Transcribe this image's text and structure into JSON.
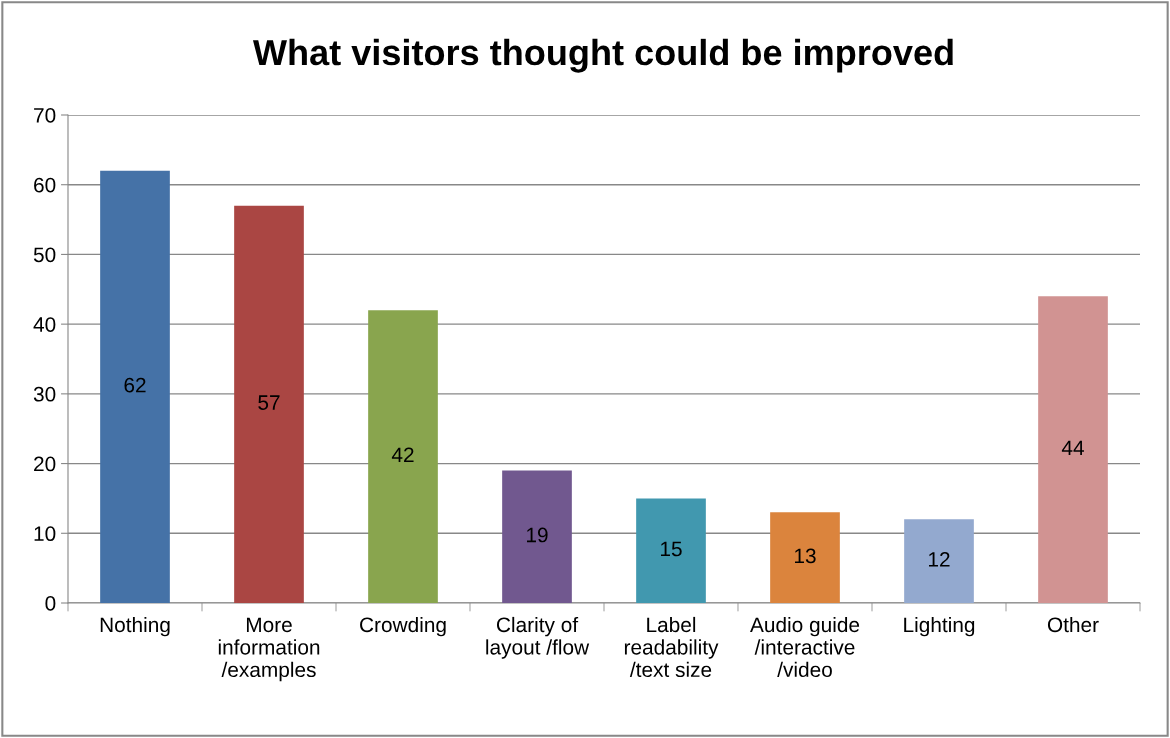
{
  "chart_data": {
    "type": "bar",
    "title": "What visitors thought could be improved",
    "categories": [
      "Nothing",
      "More\ninformation\n/examples",
      "Crowding",
      "Clarity of\nlayout /flow",
      "Label\nreadability\n/text size",
      "Audio guide\n/interactive\n/video",
      "Lighting",
      "Other"
    ],
    "values": [
      62,
      57,
      42,
      19,
      15,
      13,
      12,
      44
    ],
    "colors": [
      "#4572a7",
      "#aa4643",
      "#89a54e",
      "#71588f",
      "#4198af",
      "#db843d",
      "#93a9cf",
      "#d19392"
    ],
    "ylim": [
      0,
      70
    ],
    "yticks": [
      0,
      10,
      20,
      30,
      40,
      50,
      60,
      70
    ],
    "grid": "y",
    "data_labels": true
  }
}
